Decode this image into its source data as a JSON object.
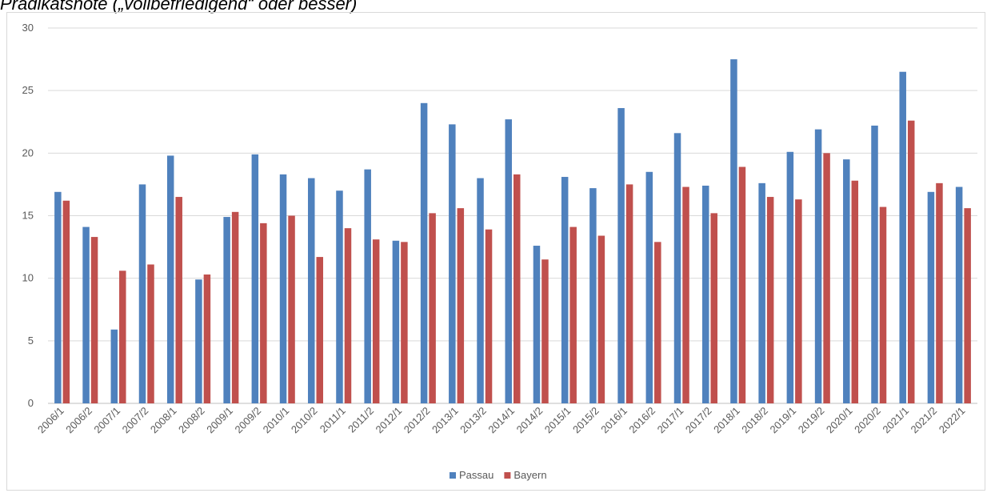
{
  "chart_data": {
    "type": "bar",
    "title": "Prädikatsnote („vollbefriedigend“ oder besser)",
    "xlabel": "",
    "ylabel": "",
    "ylim": [
      0,
      30
    ],
    "yticks": [
      "0",
      "5",
      "10",
      "15",
      "20",
      "25",
      "30"
    ],
    "grid": true,
    "legend": "bottom",
    "categories": [
      "2006/1",
      "2006/2",
      "2007/1",
      "2007/2",
      "2008/1",
      "2008/2",
      "2009/1",
      "2009/2",
      "2010/1",
      "2010/2",
      "2011/1",
      "2011/2",
      "2012/1",
      "2012/2",
      "2013/1",
      "2013/2",
      "2014/1",
      "2014/2",
      "2015/1",
      "2015/2",
      "2016/1",
      "2016/2",
      "2017/1",
      "2017/2",
      "2018/1",
      "2018/2",
      "2019/1",
      "2019/2",
      "2020/1",
      "2020/2",
      "2021/1",
      "2021/2",
      "2022/1"
    ],
    "series": [
      {
        "name": "Passau",
        "color": "#4f81bd",
        "values": [
          16.9,
          14.1,
          5.9,
          17.5,
          19.8,
          9.9,
          14.9,
          19.9,
          18.3,
          18.0,
          17.0,
          18.7,
          13.0,
          24.0,
          22.3,
          18.0,
          22.7,
          12.6,
          18.1,
          17.2,
          23.6,
          18.5,
          21.6,
          17.4,
          27.5,
          17.6,
          20.1,
          21.9,
          19.5,
          22.2,
          26.5,
          16.9,
          17.3
        ]
      },
      {
        "name": "Bayern",
        "color": "#c0504d",
        "values": [
          16.2,
          13.3,
          10.6,
          11.1,
          16.5,
          10.3,
          15.3,
          14.4,
          15.0,
          11.7,
          14.0,
          13.1,
          12.9,
          15.2,
          15.6,
          13.9,
          18.3,
          11.5,
          14.1,
          13.4,
          17.5,
          12.9,
          17.3,
          15.2,
          18.9,
          16.5,
          16.3,
          20.0,
          17.8,
          15.7,
          22.6,
          17.6,
          15.6
        ]
      }
    ]
  }
}
